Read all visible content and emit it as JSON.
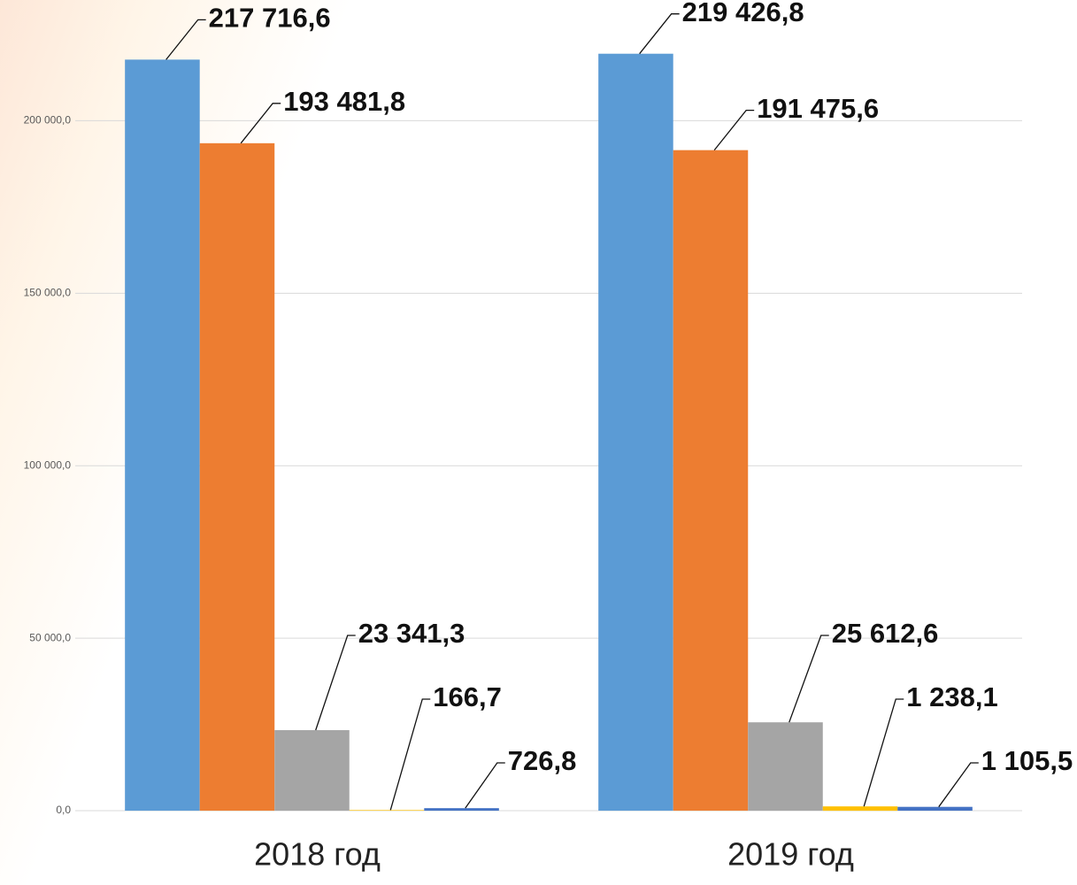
{
  "chart_data": {
    "type": "bar",
    "categories": [
      "2018 год",
      "2019 год"
    ],
    "series": [
      {
        "color": "#5b9bd5",
        "values": [
          217716.6,
          219426.8
        ],
        "value_labels": [
          "217 716,6",
          "219 426,8"
        ]
      },
      {
        "color": "#ed7d31",
        "values": [
          193481.8,
          191475.6
        ],
        "value_labels": [
          "193 481,8",
          "191 475,6"
        ]
      },
      {
        "color": "#a5a5a5",
        "values": [
          23341.3,
          25612.6
        ],
        "value_labels": [
          "23 341,3",
          "25 612,6"
        ]
      },
      {
        "color": "#ffc000",
        "values": [
          166.7,
          1238.1
        ],
        "value_labels": [
          "166,7",
          "1 238,1"
        ]
      },
      {
        "color": "#4472c4",
        "values": [
          726.8,
          1105.5
        ],
        "value_labels": [
          "726,8",
          "1 105,5"
        ]
      }
    ],
    "ylim": [
      0,
      235000
    ],
    "yticks": [
      {
        "value": 0,
        "label": "0,0"
      },
      {
        "value": 50000,
        "label": "50 000,0"
      },
      {
        "value": 100000,
        "label": "100 000,0"
      },
      {
        "value": 150000,
        "label": "150 000,0"
      },
      {
        "value": 200000,
        "label": "200 000,0"
      }
    ],
    "grid": true
  }
}
